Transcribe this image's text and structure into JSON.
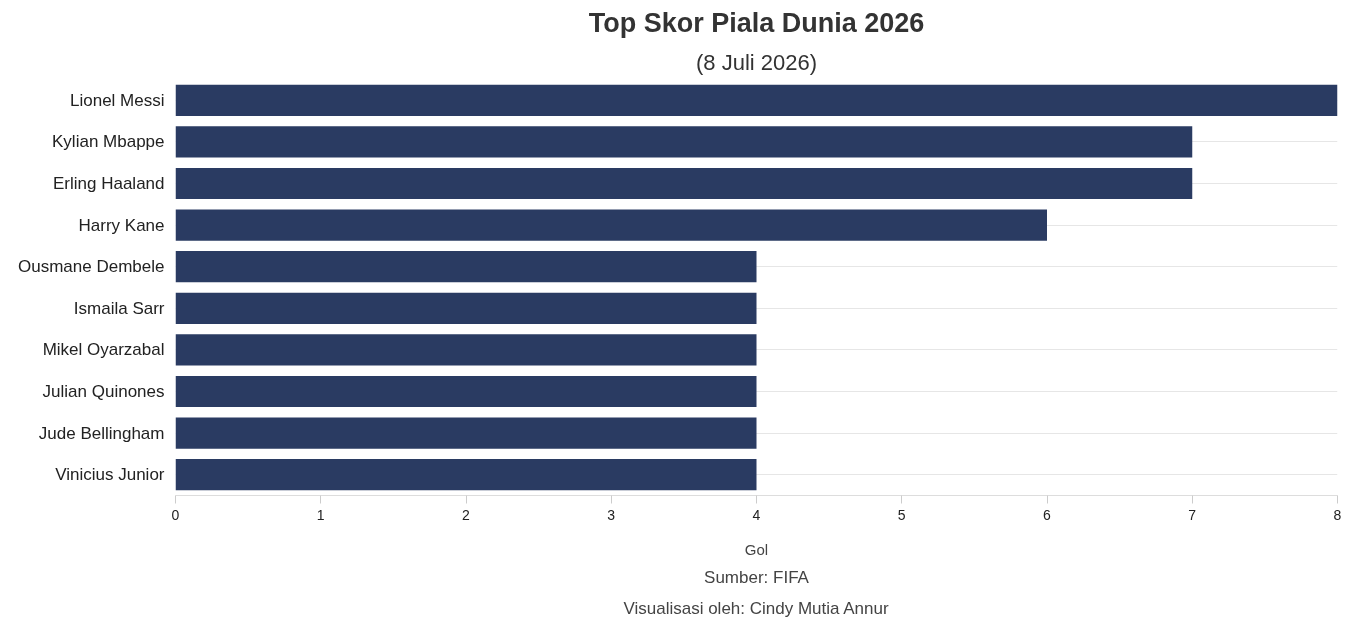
{
  "chart_data": {
    "type": "bar",
    "orientation": "horizontal",
    "title": "Top Skor Piala Dunia 2026",
    "subtitle": "(8 Juli 2026)",
    "xlabel": "Gol",
    "categories": [
      "Lionel Messi",
      "Kylian Mbappe",
      "Erling Haaland",
      "Harry Kane",
      "Ousmane Dembele",
      "Ismaila Sarr",
      "Mikel Oyarzabal",
      "Julian Quinones",
      "Jude Bellingham",
      "Vinicius Junior"
    ],
    "values": [
      8,
      7,
      7,
      6,
      4,
      4,
      4,
      4,
      4,
      4
    ],
    "color": "#2a3b62",
    "xlim": [
      0,
      8
    ],
    "xticks": [
      0,
      1,
      2,
      3,
      4,
      5,
      6,
      7,
      8
    ],
    "grid": "y",
    "annotations": [
      "Sumber: FIFA",
      "Visualisasi oleh: Cindy Mutia Annur"
    ]
  }
}
